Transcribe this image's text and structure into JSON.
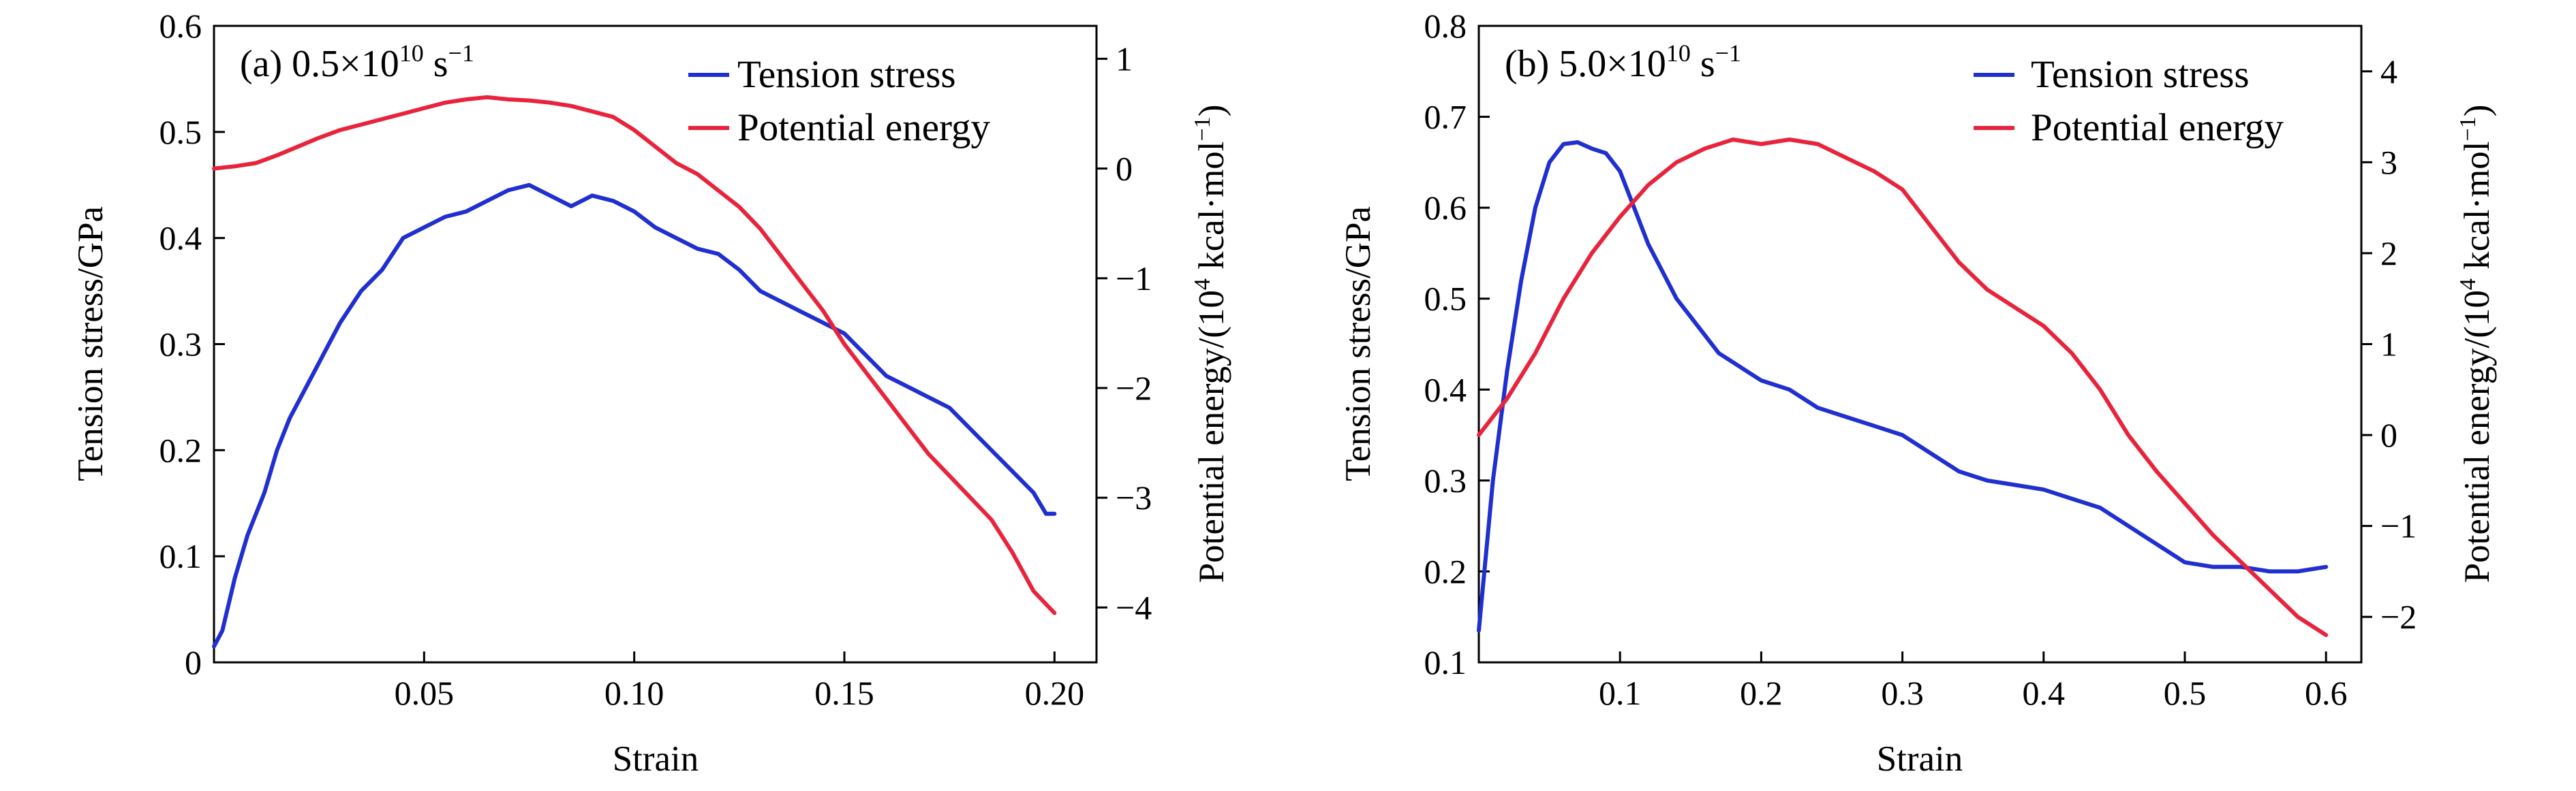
{
  "chart_data": [
    {
      "id": "a",
      "type": "line",
      "title": "(a) 0.5×10",
      "title_sup": "10",
      "title_unit": " s",
      "title_unit_sup": "−1",
      "xlabel": "Strain",
      "ylabel_left": "Tension stress/GPa",
      "ylabel_right": "Potential energy/(10",
      "ylabel_right_sup": "4",
      "ylabel_right_tail": " kcal·mol",
      "ylabel_right_tail_sup": "−1",
      "ylabel_right_close": ")",
      "xlim": [
        0.0,
        0.21
      ],
      "ylim_left": [
        0.0,
        0.6
      ],
      "ylim_right": [
        -4.5,
        1.3
      ],
      "xticks": [
        0.05,
        0.1,
        0.15,
        0.2
      ],
      "xtick_labels": [
        "0.05",
        "0.10",
        "0.15",
        "0.20"
      ],
      "yticks_left": [
        0,
        0.1,
        0.2,
        0.3,
        0.4,
        0.5,
        0.6
      ],
      "ytick_left_labels": [
        "0",
        "0.1",
        "0.2",
        "0.3",
        "0.4",
        "0.5",
        "0.6"
      ],
      "yticks_right": [
        1,
        0,
        -1,
        -2,
        -3,
        -4
      ],
      "ytick_right_labels": [
        "1",
        "0",
        "−1",
        "−2",
        "−3",
        "−4"
      ],
      "legend_position": "top-right",
      "series": [
        {
          "name": "Tension stress",
          "axis": "left",
          "color": "#1f2fd0",
          "x": [
            0.0,
            0.002,
            0.005,
            0.008,
            0.012,
            0.015,
            0.018,
            0.022,
            0.026,
            0.03,
            0.035,
            0.04,
            0.045,
            0.05,
            0.055,
            0.06,
            0.065,
            0.07,
            0.075,
            0.08,
            0.085,
            0.09,
            0.095,
            0.1,
            0.105,
            0.11,
            0.115,
            0.12,
            0.125,
            0.13,
            0.135,
            0.14,
            0.145,
            0.15,
            0.155,
            0.16,
            0.165,
            0.17,
            0.175,
            0.18,
            0.185,
            0.19,
            0.195,
            0.198,
            0.2
          ],
          "y": [
            0.015,
            0.03,
            0.08,
            0.12,
            0.16,
            0.2,
            0.23,
            0.26,
            0.29,
            0.32,
            0.35,
            0.37,
            0.4,
            0.41,
            0.42,
            0.425,
            0.435,
            0.445,
            0.45,
            0.44,
            0.43,
            0.44,
            0.435,
            0.425,
            0.41,
            0.4,
            0.39,
            0.385,
            0.37,
            0.35,
            0.34,
            0.33,
            0.32,
            0.31,
            0.29,
            0.27,
            0.26,
            0.25,
            0.24,
            0.22,
            0.2,
            0.18,
            0.16,
            0.14,
            0.14
          ]
        },
        {
          "name": "Potential energy",
          "axis": "right",
          "color": "#e8243c",
          "x": [
            0.0,
            0.005,
            0.01,
            0.015,
            0.02,
            0.025,
            0.03,
            0.035,
            0.04,
            0.045,
            0.05,
            0.055,
            0.06,
            0.065,
            0.07,
            0.075,
            0.08,
            0.085,
            0.09,
            0.095,
            0.1,
            0.105,
            0.11,
            0.115,
            0.12,
            0.125,
            0.13,
            0.135,
            0.14,
            0.145,
            0.15,
            0.155,
            0.16,
            0.165,
            0.17,
            0.175,
            0.18,
            0.185,
            0.19,
            0.195,
            0.2
          ],
          "y": [
            0.0,
            0.02,
            0.05,
            0.12,
            0.2,
            0.28,
            0.35,
            0.4,
            0.45,
            0.5,
            0.55,
            0.6,
            0.63,
            0.65,
            0.63,
            0.62,
            0.6,
            0.57,
            0.52,
            0.47,
            0.35,
            0.2,
            0.05,
            -0.05,
            -0.2,
            -0.35,
            -0.55,
            -0.8,
            -1.05,
            -1.3,
            -1.6,
            -1.85,
            -2.1,
            -2.35,
            -2.6,
            -2.8,
            -3.0,
            -3.2,
            -3.5,
            -3.85,
            -4.05
          ]
        }
      ]
    },
    {
      "id": "b",
      "type": "line",
      "title": "(b) 5.0×10",
      "title_sup": "10",
      "title_unit": " s",
      "title_unit_sup": "−1",
      "xlabel": "Strain",
      "ylabel_left": "Tension stress/GPa",
      "ylabel_right": "Potential energy/(10",
      "ylabel_right_sup": "4",
      "ylabel_right_tail": " kcal·mol",
      "ylabel_right_tail_sup": "−1",
      "ylabel_right_close": ")",
      "xlim": [
        0.0,
        0.625
      ],
      "ylim_left": [
        0.1,
        0.8
      ],
      "ylim_right": [
        -2.5,
        4.5
      ],
      "xticks": [
        0.1,
        0.2,
        0.3,
        0.4,
        0.5,
        0.6
      ],
      "xtick_labels": [
        "0.1",
        "0.2",
        "0.3",
        "0.4",
        "0.5",
        "0.6"
      ],
      "yticks_left": [
        0.1,
        0.2,
        0.3,
        0.4,
        0.5,
        0.6,
        0.7,
        0.8
      ],
      "ytick_left_labels": [
        "0.1",
        "0.2",
        "0.3",
        "0.4",
        "0.5",
        "0.6",
        "0.7",
        "0.8"
      ],
      "yticks_right": [
        4,
        3,
        2,
        1,
        0,
        -1,
        -2
      ],
      "ytick_right_labels": [
        "4",
        "3",
        "2",
        "1",
        "0",
        "−1",
        "−2"
      ],
      "legend_position": "top-right",
      "series": [
        {
          "name": "Tension stress",
          "axis": "left",
          "color": "#1f2fd0",
          "x": [
            0.0,
            0.01,
            0.02,
            0.03,
            0.04,
            0.05,
            0.06,
            0.07,
            0.08,
            0.09,
            0.1,
            0.11,
            0.12,
            0.13,
            0.14,
            0.15,
            0.16,
            0.17,
            0.18,
            0.19,
            0.2,
            0.22,
            0.24,
            0.26,
            0.28,
            0.3,
            0.32,
            0.34,
            0.36,
            0.38,
            0.4,
            0.42,
            0.44,
            0.46,
            0.48,
            0.5,
            0.52,
            0.54,
            0.56,
            0.58,
            0.6
          ],
          "y": [
            0.135,
            0.3,
            0.42,
            0.52,
            0.6,
            0.65,
            0.67,
            0.672,
            0.665,
            0.66,
            0.64,
            0.6,
            0.56,
            0.53,
            0.5,
            0.48,
            0.46,
            0.44,
            0.43,
            0.42,
            0.41,
            0.4,
            0.38,
            0.37,
            0.36,
            0.35,
            0.33,
            0.31,
            0.3,
            0.295,
            0.29,
            0.28,
            0.27,
            0.25,
            0.23,
            0.21,
            0.205,
            0.205,
            0.2,
            0.2,
            0.205
          ]
        },
        {
          "name": "Potential energy",
          "axis": "right",
          "color": "#e8243c",
          "x": [
            0.0,
            0.02,
            0.04,
            0.06,
            0.08,
            0.1,
            0.12,
            0.14,
            0.16,
            0.18,
            0.2,
            0.22,
            0.24,
            0.26,
            0.28,
            0.3,
            0.32,
            0.34,
            0.36,
            0.38,
            0.4,
            0.42,
            0.44,
            0.46,
            0.48,
            0.5,
            0.52,
            0.54,
            0.56,
            0.58,
            0.6
          ],
          "y": [
            0.0,
            0.4,
            0.9,
            1.5,
            2.0,
            2.4,
            2.75,
            3.0,
            3.15,
            3.25,
            3.2,
            3.25,
            3.2,
            3.05,
            2.9,
            2.7,
            2.3,
            1.9,
            1.6,
            1.4,
            1.2,
            0.9,
            0.5,
            0.0,
            -0.4,
            -0.75,
            -1.1,
            -1.4,
            -1.7,
            -2.0,
            -2.2
          ]
        }
      ]
    }
  ]
}
